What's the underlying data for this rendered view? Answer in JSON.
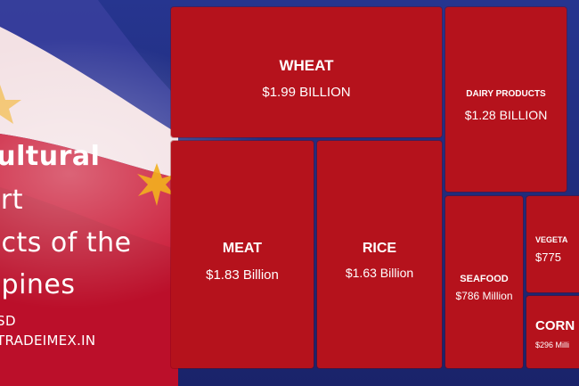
{
  "title": {
    "line1": "cultural",
    "line2": "ort",
    "line3": "ucts of the",
    "line4": "ppines",
    "line5": "SD",
    "line6": "TRADEIMEX.IN"
  },
  "colors": {
    "tile": "#b5121c",
    "flag_blue": "#1e2a78",
    "flag_red": "#c8102e",
    "flag_white": "#f4e4e6",
    "sun": "#f2b01e"
  },
  "chart_data": {
    "type": "treemap",
    "unit": "USD",
    "items": [
      {
        "name": "WHEAT",
        "label": "$1.99 BILLION",
        "value": 1.99
      },
      {
        "name": "DAIRY PRODUCTS",
        "label": "$1.28 BILLION",
        "value": 1.28
      },
      {
        "name": "MEAT",
        "label": "$1.83 Billion",
        "value": 1.83
      },
      {
        "name": "RICE",
        "label": "$1.63 Billion",
        "value": 1.63
      },
      {
        "name": "SEAFOOD",
        "label": "$786 Million",
        "value": 0.786
      },
      {
        "name": "VEGETA",
        "label": "$775",
        "value": 0.775
      },
      {
        "name": "CORN",
        "label": "$296 Milli",
        "value": 0.296
      }
    ]
  }
}
